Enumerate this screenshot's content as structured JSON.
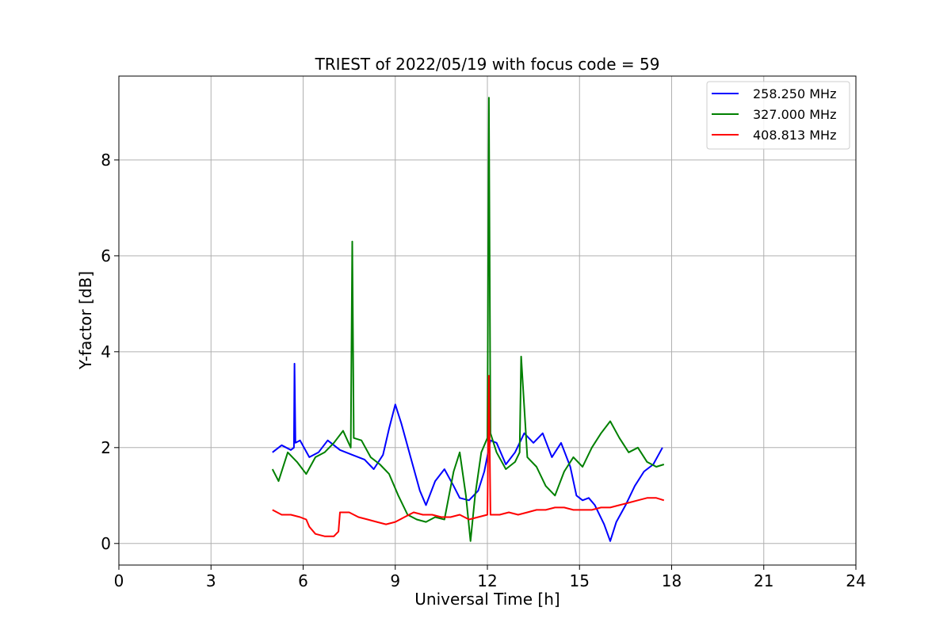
{
  "chart_data": {
    "type": "line",
    "title": "TRIEST of 2022/05/19 with focus code = 59",
    "xlabel": "Universal Time [h]",
    "ylabel": "Y-factor [dB]",
    "xlim": [
      0,
      24
    ],
    "ylim": [
      -0.45,
      9.75
    ],
    "xticks": [
      0,
      3,
      6,
      9,
      12,
      15,
      18,
      21,
      24
    ],
    "yticks": [
      0,
      2,
      4,
      6,
      8
    ],
    "grid": true,
    "legend_position": "top-right",
    "series": [
      {
        "name": "258.250 MHz",
        "color": "#0000ff",
        "x": [
          5.0,
          5.3,
          5.6,
          5.7,
          5.72,
          5.75,
          5.9,
          6.2,
          6.5,
          6.8,
          7.2,
          7.6,
          8.0,
          8.3,
          8.6,
          8.8,
          9.0,
          9.2,
          9.5,
          9.8,
          10.0,
          10.3,
          10.6,
          10.9,
          11.1,
          11.4,
          11.7,
          11.9,
          12.1,
          12.3,
          12.6,
          12.9,
          13.2,
          13.5,
          13.8,
          14.1,
          14.4,
          14.7,
          14.9,
          15.1,
          15.3,
          15.5,
          15.8,
          16.0,
          16.2,
          16.5,
          16.8,
          17.1,
          17.4,
          17.7
        ],
        "y": [
          1.9,
          2.05,
          1.95,
          2.0,
          3.75,
          2.1,
          2.15,
          1.8,
          1.9,
          2.15,
          1.95,
          1.85,
          1.75,
          1.55,
          1.85,
          2.4,
          2.9,
          2.5,
          1.8,
          1.1,
          0.8,
          1.3,
          1.55,
          1.2,
          0.95,
          0.9,
          1.1,
          1.5,
          2.15,
          2.1,
          1.65,
          1.9,
          2.3,
          2.1,
          2.3,
          1.8,
          2.1,
          1.6,
          1.0,
          0.9,
          0.95,
          0.8,
          0.4,
          0.05,
          0.45,
          0.8,
          1.2,
          1.5,
          1.65,
          2.0
        ]
      },
      {
        "name": "327.000 MHz",
        "color": "#008000",
        "x": [
          5.0,
          5.2,
          5.5,
          5.8,
          6.1,
          6.4,
          6.7,
          7.0,
          7.3,
          7.55,
          7.6,
          7.65,
          7.9,
          8.2,
          8.5,
          8.8,
          9.1,
          9.4,
          9.7,
          10.0,
          10.3,
          10.6,
          10.9,
          11.1,
          11.3,
          11.45,
          11.6,
          11.8,
          12.0,
          12.05,
          12.1,
          12.3,
          12.6,
          12.9,
          13.05,
          13.1,
          13.3,
          13.6,
          13.9,
          14.2,
          14.5,
          14.8,
          15.1,
          15.4,
          15.7,
          16.0,
          16.3,
          16.6,
          16.9,
          17.2,
          17.5,
          17.75
        ],
        "y": [
          1.55,
          1.3,
          1.9,
          1.7,
          1.45,
          1.8,
          1.9,
          2.1,
          2.35,
          2.0,
          6.3,
          2.2,
          2.15,
          1.8,
          1.65,
          1.45,
          1.0,
          0.6,
          0.5,
          0.45,
          0.55,
          0.5,
          1.5,
          1.9,
          1.0,
          0.05,
          1.0,
          1.9,
          2.2,
          9.3,
          2.3,
          1.9,
          1.55,
          1.7,
          1.9,
          3.9,
          1.8,
          1.6,
          1.2,
          1.0,
          1.5,
          1.8,
          1.6,
          2.0,
          2.3,
          2.55,
          2.2,
          1.9,
          2.0,
          1.7,
          1.6,
          1.65
        ]
      },
      {
        "name": "408.813 MHz",
        "color": "#ff0000",
        "x": [
          5.0,
          5.3,
          5.6,
          5.9,
          6.1,
          6.2,
          6.4,
          6.7,
          7.0,
          7.15,
          7.2,
          7.5,
          7.8,
          8.1,
          8.4,
          8.7,
          9.0,
          9.3,
          9.6,
          9.9,
          10.2,
          10.5,
          10.8,
          11.1,
          11.4,
          11.7,
          12.0,
          12.05,
          12.1,
          12.4,
          12.7,
          13.0,
          13.3,
          13.6,
          13.9,
          14.2,
          14.5,
          14.8,
          15.1,
          15.4,
          15.7,
          16.0,
          16.3,
          16.6,
          16.9,
          17.2,
          17.5,
          17.75
        ],
        "y": [
          0.7,
          0.6,
          0.6,
          0.55,
          0.5,
          0.35,
          0.2,
          0.15,
          0.15,
          0.25,
          0.65,
          0.65,
          0.55,
          0.5,
          0.45,
          0.4,
          0.45,
          0.55,
          0.65,
          0.6,
          0.6,
          0.55,
          0.55,
          0.6,
          0.5,
          0.55,
          0.6,
          3.5,
          0.6,
          0.6,
          0.65,
          0.6,
          0.65,
          0.7,
          0.7,
          0.75,
          0.75,
          0.7,
          0.7,
          0.7,
          0.75,
          0.75,
          0.8,
          0.85,
          0.9,
          0.95,
          0.95,
          0.9
        ]
      }
    ]
  }
}
